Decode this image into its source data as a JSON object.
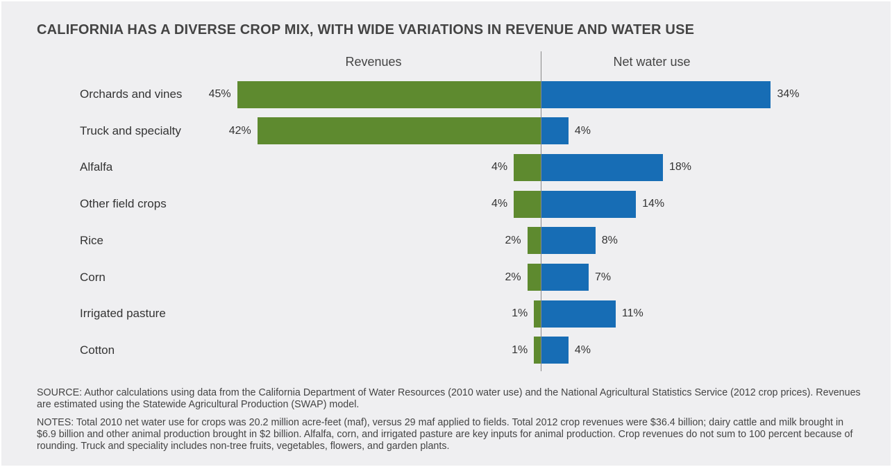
{
  "chart_data": {
    "type": "bar",
    "title": "CALIFORNIA HAS A DIVERSE CROP MIX, WITH WIDE VARIATIONS IN REVENUE AND WATER USE",
    "categories": [
      "Orchards and vines",
      "Truck and specialty",
      "Alfalfa",
      "Other field crops",
      "Rice",
      "Corn",
      "Irrigated pasture",
      "Cotton"
    ],
    "series": [
      {
        "name": "Revenues",
        "values": [
          45,
          42,
          4,
          4,
          2,
          2,
          1,
          1
        ],
        "color": "#5e8a2f",
        "direction": "left"
      },
      {
        "name": "Net water use",
        "values": [
          34,
          4,
          18,
          14,
          8,
          7,
          11,
          4
        ],
        "color": "#176db5",
        "direction": "right"
      }
    ],
    "unit": "%",
    "grid": false
  },
  "source": "SOURCE: Author calculations using data from the California Department of Water Resources (2010 water use) and the National Agricultural Statistics Service (2012 crop prices). Revenues are estimated using the Statewide Agricultural Production (SWAP) model.",
  "notes": "NOTES: Total 2010 net water use for crops was 20.2 million acre-feet (maf), versus 29 maf applied to fields. Total 2012 crop revenues were $36.4 billion; dairy cattle and milk brought in $6.9 billion and other animal production brought in $2 billion. Alfalfa, corn, and irrigated pasture are key inputs for animal production. Crop revenues do not sum to 100 percent because of rounding. Truck and speciality includes non-tree fruits, vegetables, flowers, and garden plants."
}
